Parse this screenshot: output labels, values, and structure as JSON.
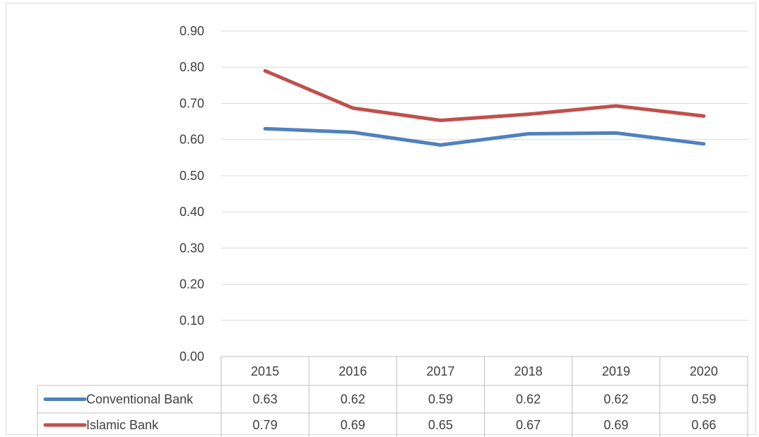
{
  "chart_data": {
    "type": "line",
    "categories": [
      "2015",
      "2016",
      "2017",
      "2018",
      "2019",
      "2020"
    ],
    "series": [
      {
        "name": "Conventional Bank",
        "color": "#4f81bd",
        "values": [
          0.63,
          0.62,
          0.585,
          0.616,
          0.618,
          0.588
        ],
        "labels": [
          "0.63",
          "0.62",
          "0.59",
          "0.62",
          "0.62",
          "0.59"
        ]
      },
      {
        "name": "Islamic Bank",
        "color": "#c0504d",
        "values": [
          0.79,
          0.687,
          0.653,
          0.67,
          0.693,
          0.665
        ],
        "labels": [
          "0.79",
          "0.69",
          "0.65",
          "0.67",
          "0.69",
          "0.66"
        ]
      }
    ],
    "y_ticks": [
      "0.00",
      "0.10",
      "0.20",
      "0.30",
      "0.40",
      "0.50",
      "0.60",
      "0.70",
      "0.80",
      "0.90"
    ],
    "ylim": [
      0,
      0.9
    ],
    "grid": true,
    "legend": "data-table-below"
  }
}
